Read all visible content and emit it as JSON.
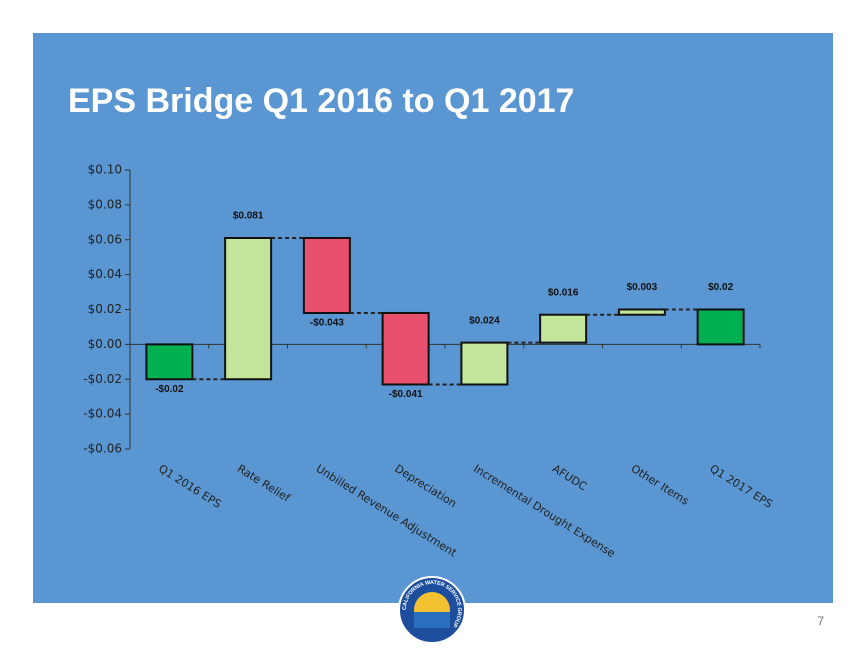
{
  "chart_data": {
    "type": "waterfall",
    "title": "EPS Bridge Q1 2016 to Q1 2017",
    "categories": [
      "Q1 2016 EPS",
      "Rate Relief",
      "Unbilled Revenue Adjustment",
      "Depreciation",
      "Incremental Drought Expense",
      "AFUDC",
      "Other Items",
      "Q1 2017 EPS"
    ],
    "values": [
      -0.02,
      0.081,
      -0.043,
      -0.041,
      0.024,
      0.016,
      0.003,
      0.02
    ],
    "value_labels": [
      "-$0.02",
      "$0.081",
      "-$0.043",
      "-$0.041",
      "$0.024",
      "$0.016",
      "$0.003",
      "$0.02"
    ],
    "colors": {
      "total": "#00b050",
      "increase": "#c3e59a",
      "decrease": "#e8506e"
    },
    "ylim": [
      -0.06,
      0.1
    ],
    "yticks": [
      {
        "value": -0.06,
        "label": "-$0.06"
      },
      {
        "value": -0.04,
        "label": "-$0.04"
      },
      {
        "value": -0.02,
        "label": "-$0.02"
      },
      {
        "value": 0,
        "label": "$0.00"
      },
      {
        "value": 0.02,
        "label": "$0.02"
      },
      {
        "value": 0.04,
        "label": "$0.04"
      },
      {
        "value": 0.06,
        "label": "$0.06"
      },
      {
        "value": 0.08,
        "label": "$0.08"
      },
      {
        "value": 0.1,
        "label": "$0.10"
      }
    ]
  },
  "logo_text": "CALIFORNIA WATER SERVICE GROUP",
  "page_number": "7"
}
